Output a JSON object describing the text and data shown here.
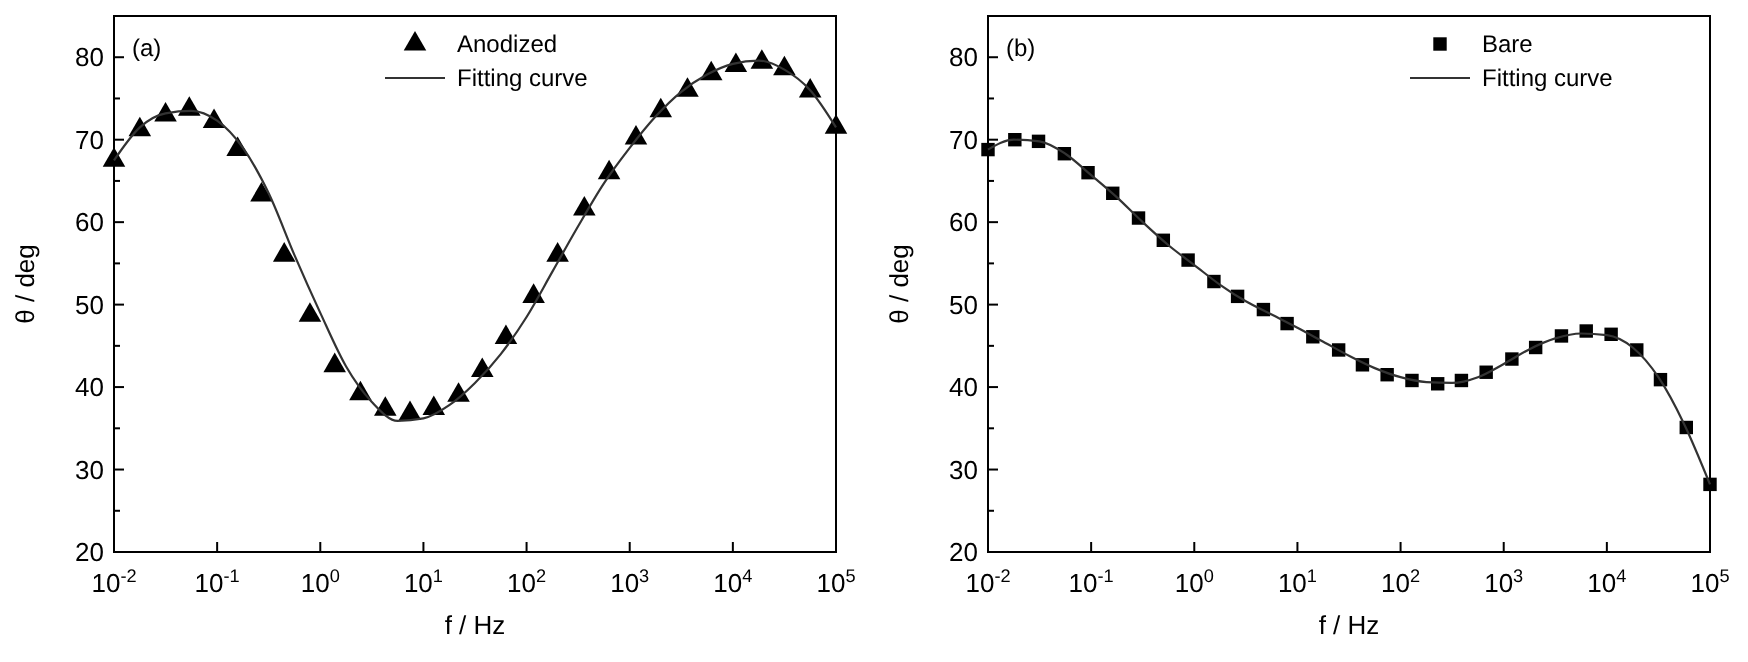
{
  "chart_data": [
    {
      "type": "line",
      "annotations": [
        "(a)"
      ],
      "xlabel": "f / Hz",
      "ylabel": "θ / deg",
      "log": "x",
      "xlim": [
        0.01,
        100000
      ],
      "ylim": [
        20,
        85
      ],
      "xticks": [
        {
          "value": 0.01,
          "label": "10$^{-2}$"
        },
        {
          "value": 0.1,
          "label": "10$^{-1}$"
        },
        {
          "value": 1,
          "label": "10$^{0}$"
        },
        {
          "value": 10,
          "label": "10$^{1}$"
        },
        {
          "value": 100,
          "label": "10$^{2}$"
        },
        {
          "value": 1000,
          "label": "10$^{3}$"
        },
        {
          "value": 10000,
          "label": "10$^{4}$"
        },
        {
          "value": 100000,
          "label": "10$^{5}$"
        }
      ],
      "yticks": [
        20,
        {
          "value": 25,
          "label": null
        },
        30,
        {
          "value": 35,
          "label": null
        },
        40,
        {
          "value": 45,
          "label": null
        },
        50,
        {
          "value": 55,
          "label": null
        },
        60,
        {
          "value": 65,
          "label": null
        },
        70,
        {
          "value": 75,
          "label": null
        },
        80
      ],
      "legend": "top",
      "grid": false,
      "series": [
        {
          "name": "Anodized",
          "type": "scatter",
          "marker": "triangle",
          "color": "#000000",
          "x": [
            0.01,
            0.0178,
            0.0316,
            0.0537,
            0.0933,
            0.158,
            0.269,
            0.447,
            0.794,
            1.38,
            2.45,
            4.27,
            7.41,
            12.6,
            21.9,
            37.2,
            63.1,
            117,
            200,
            363,
            631,
            1150,
            2000,
            3630,
            6170,
            10700,
            19100,
            31600,
            56200,
            100000
          ],
          "values": [
            67.5,
            71.2,
            73,
            73.7,
            72.2,
            68.8,
            63.3,
            56,
            48.7,
            42.6,
            39.2,
            37.3,
            36.8,
            37.4,
            39,
            42,
            46,
            51,
            56,
            61.6,
            66,
            70.2,
            73.5,
            76,
            78,
            79,
            79.4,
            78.6,
            75.9,
            71.5
          ]
        },
        {
          "name": "Fitting curve",
          "type": "line",
          "marker": "none",
          "line_style": "solid",
          "color": "#333333",
          "x": [
            0.01,
            0.0178,
            0.0316,
            0.0562,
            0.1,
            0.178,
            0.316,
            0.562,
            1,
            1.78,
            3.16,
            5.62,
            10,
            17.8,
            31.6,
            56.2,
            100,
            178,
            316,
            562,
            1000,
            1780,
            3160,
            5620,
            10000,
            17800,
            31600,
            56200,
            100000
          ],
          "values": [
            67.5,
            71.5,
            73.2,
            73.5,
            72.3,
            69,
            63.5,
            56,
            49,
            42.5,
            38.2,
            35.9,
            36.2,
            37.8,
            40.5,
            44,
            48.5,
            54,
            59.5,
            64.7,
            69,
            72.8,
            75.8,
            77.9,
            79.2,
            79.6,
            78.5,
            76,
            71.5
          ]
        }
      ]
    },
    {
      "type": "line",
      "annotations": [
        "(b)"
      ],
      "xlabel": "f / Hz",
      "ylabel": "θ / deg",
      "log": "x",
      "xlim": [
        0.01,
        100000
      ],
      "ylim": [
        20,
        85
      ],
      "xticks": [
        {
          "value": 0.01,
          "label": "10$^{-2}$"
        },
        {
          "value": 0.1,
          "label": "10$^{-1}$"
        },
        {
          "value": 1,
          "label": "10$^{0}$"
        },
        {
          "value": 10,
          "label": "10$^{1}$"
        },
        {
          "value": 100,
          "label": "10$^{2}$"
        },
        {
          "value": 1000,
          "label": "10$^{3}$"
        },
        {
          "value": 10000,
          "label": "10$^{4}$"
        },
        {
          "value": 100000,
          "label": "10$^{5}$"
        }
      ],
      "yticks": [
        20,
        {
          "value": 25,
          "label": null
        },
        30,
        {
          "value": 35,
          "label": null
        },
        40,
        {
          "value": 45,
          "label": null
        },
        50,
        {
          "value": 55,
          "label": null
        },
        60,
        {
          "value": 65,
          "label": null
        },
        70,
        {
          "value": 75,
          "label": null
        },
        80
      ],
      "legend": "top right",
      "grid": false,
      "series": [
        {
          "name": "Bare",
          "type": "scatter",
          "marker": "square",
          "color": "#000000",
          "x": [
            0.01,
            0.0182,
            0.0309,
            0.055,
            0.0933,
            0.162,
            0.288,
            0.501,
            0.871,
            1.55,
            2.63,
            4.68,
            7.94,
            14.1,
            25.1,
            42.7,
            74.1,
            129,
            229,
            389,
            676,
            1200,
            2040,
            3630,
            6310,
            11000,
            19500,
            33100,
            58900,
            100000
          ],
          "values": [
            68.8,
            70,
            69.8,
            68.3,
            66,
            63.5,
            60.5,
            57.8,
            55.4,
            52.8,
            51,
            49.4,
            47.7,
            46.1,
            44.5,
            42.7,
            41.5,
            40.8,
            40.4,
            40.8,
            41.8,
            43.4,
            44.8,
            46.2,
            46.8,
            46.4,
            44.5,
            40.9,
            35.1,
            28.2
          ]
        },
        {
          "name": "Fitting curve",
          "type": "line",
          "marker": "none",
          "line_style": "solid",
          "color": "#333333",
          "x": [
            0.01,
            0.0178,
            0.0316,
            0.0562,
            0.1,
            0.178,
            0.316,
            0.562,
            1,
            1.78,
            3.16,
            5.62,
            10,
            17.8,
            31.6,
            56.2,
            100,
            178,
            316,
            562,
            1000,
            1780,
            3160,
            5620,
            10000,
            17800,
            31600,
            56200,
            100000
          ],
          "values": [
            68.8,
            70,
            69.8,
            68.3,
            65.7,
            63,
            60,
            57.2,
            54.8,
            52.4,
            50.4,
            48.8,
            47.2,
            45.5,
            43.8,
            42.3,
            41.2,
            40.6,
            40.5,
            41.2,
            42.8,
            44.6,
            45.9,
            46.5,
            46.3,
            44.8,
            41.2,
            35.5,
            28.2
          ]
        }
      ]
    }
  ]
}
